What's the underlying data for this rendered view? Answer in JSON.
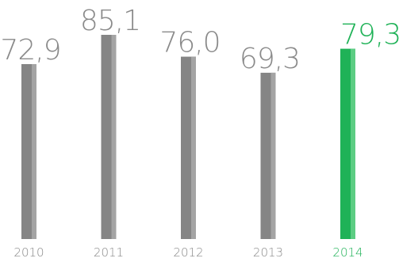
{
  "chart_data": {
    "type": "bar",
    "categories": [
      "2010",
      "2011",
      "2012",
      "2013",
      "2014"
    ],
    "values": [
      72.9,
      85.1,
      76.0,
      69.3,
      79.3
    ],
    "value_labels": [
      "72,9",
      "85,1",
      "76,0",
      "69,3",
      "79,3"
    ],
    "highlight_index": 4,
    "ylim": [
      0,
      85.1
    ],
    "grid": false,
    "title": "",
    "xlabel": "",
    "ylabel": ""
  },
  "colors": {
    "bar": "#858585",
    "bar_shade": "#a4a4a4",
    "bar_highlight": "#1fb257",
    "bar_highlight_shade": "#5ccd83",
    "label": "#8a8a8a",
    "label_highlight": "#1fb257"
  }
}
